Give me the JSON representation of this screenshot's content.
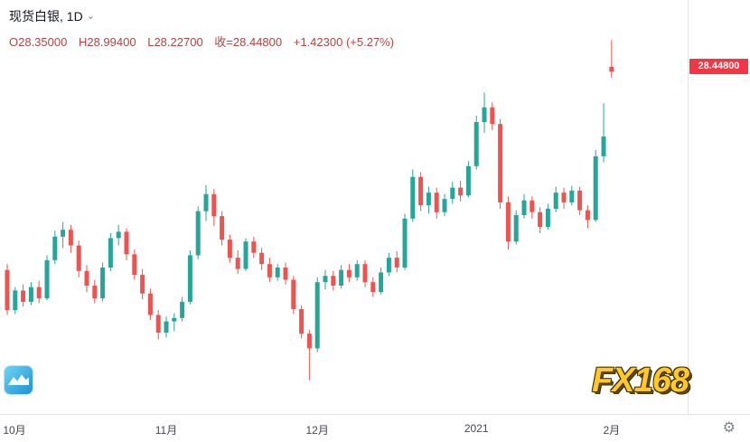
{
  "header": {
    "title": "现货白银, 1D",
    "dropdown_caret": "⌄",
    "ohlc": {
      "open": "O28.35000",
      "high": "H28.99400",
      "low": "L28.22700",
      "close": "收=28.44800",
      "change": "+1.42300 (+5.27%)"
    }
  },
  "price_axis": {
    "last_price_label": "28.44800"
  },
  "colors": {
    "up": "#26a69a",
    "down": "#ef5350",
    "label_bg": "#f23645",
    "ohlc_text": "#b24341",
    "axis_line": "#dcdfe5"
  },
  "watermark": {
    "brand": "FX168"
  },
  "bottom_bar": {
    "gear_icon": "⚙"
  },
  "chart_data": {
    "type": "candlestick",
    "title": "现货白银 1D",
    "symbol": "现货白银",
    "interval": "1D",
    "last_price": 28.448,
    "change": 1.423,
    "change_pct": 5.27,
    "y_range": [
      21.6,
      29.35
    ],
    "grid": false,
    "x_ticks": [
      {
        "index": 0,
        "label": "10月"
      },
      {
        "index": 20,
        "label": "11月"
      },
      {
        "index": 39,
        "label": "12月"
      },
      {
        "index": 59,
        "label": "2021"
      },
      {
        "index": 76,
        "label": "2月"
      }
    ],
    "candles": [
      [
        24.3,
        24.42,
        23.38,
        23.48
      ],
      [
        23.48,
        23.95,
        23.4,
        23.88
      ],
      [
        23.88,
        24.0,
        23.55,
        23.65
      ],
      [
        23.65,
        24.05,
        23.58,
        23.95
      ],
      [
        23.95,
        24.08,
        23.62,
        23.72
      ],
      [
        23.72,
        24.6,
        23.68,
        24.5
      ],
      [
        24.5,
        25.1,
        24.42,
        24.98
      ],
      [
        24.98,
        25.28,
        24.75,
        25.12
      ],
      [
        25.12,
        25.22,
        24.65,
        24.8
      ],
      [
        24.8,
        24.9,
        24.15,
        24.28
      ],
      [
        24.28,
        24.4,
        23.85,
        23.98
      ],
      [
        23.98,
        24.1,
        23.62,
        23.72
      ],
      [
        23.72,
        24.45,
        23.66,
        24.35
      ],
      [
        24.35,
        25.05,
        24.28,
        24.95
      ],
      [
        24.95,
        25.22,
        24.8,
        25.08
      ],
      [
        25.08,
        25.15,
        24.5,
        24.62
      ],
      [
        24.62,
        24.72,
        24.1,
        24.2
      ],
      [
        24.2,
        24.32,
        23.7,
        23.82
      ],
      [
        23.82,
        23.92,
        23.28,
        23.38
      ],
      [
        23.38,
        23.48,
        22.88,
        23.02
      ],
      [
        23.02,
        23.35,
        22.92,
        23.25
      ],
      [
        23.25,
        23.42,
        23.05,
        23.32
      ],
      [
        23.32,
        23.75,
        23.25,
        23.65
      ],
      [
        23.65,
        24.7,
        23.6,
        24.6
      ],
      [
        24.6,
        25.6,
        24.52,
        25.5
      ],
      [
        25.5,
        26.03,
        25.3,
        25.85
      ],
      [
        25.85,
        25.95,
        25.2,
        25.4
      ],
      [
        25.4,
        25.5,
        24.8,
        24.92
      ],
      [
        24.92,
        25.02,
        24.45,
        24.55
      ],
      [
        24.55,
        24.7,
        24.22,
        24.32
      ],
      [
        24.32,
        24.95,
        24.28,
        24.88
      ],
      [
        24.88,
        24.98,
        24.55,
        24.65
      ],
      [
        24.65,
        24.75,
        24.3,
        24.42
      ],
      [
        24.42,
        24.55,
        24.05,
        24.15
      ],
      [
        24.15,
        24.42,
        24.08,
        24.35
      ],
      [
        24.35,
        24.45,
        24.0,
        24.1
      ],
      [
        24.1,
        24.18,
        23.4,
        23.5
      ],
      [
        23.5,
        23.58,
        22.9,
        23.0
      ],
      [
        23.0,
        23.08,
        22.05,
        22.7
      ],
      [
        22.7,
        24.15,
        22.62,
        24.05
      ],
      [
        24.05,
        24.3,
        23.9,
        24.18
      ],
      [
        24.18,
        24.28,
        23.88,
        23.98
      ],
      [
        23.98,
        24.4,
        23.92,
        24.3
      ],
      [
        24.3,
        24.42,
        24.05,
        24.15
      ],
      [
        24.15,
        24.5,
        24.08,
        24.42
      ],
      [
        24.42,
        24.5,
        23.95,
        24.05
      ],
      [
        24.05,
        24.15,
        23.75,
        23.85
      ],
      [
        23.85,
        24.35,
        23.8,
        24.25
      ],
      [
        24.25,
        24.65,
        24.18,
        24.55
      ],
      [
        24.55,
        24.68,
        24.25,
        24.35
      ],
      [
        24.35,
        25.45,
        24.3,
        25.35
      ],
      [
        25.35,
        26.35,
        25.28,
        26.2
      ],
      [
        26.2,
        26.3,
        25.5,
        25.62
      ],
      [
        25.62,
        26.0,
        25.45,
        25.88
      ],
      [
        25.88,
        25.98,
        25.35,
        25.48
      ],
      [
        25.48,
        25.85,
        25.4,
        25.75
      ],
      [
        25.75,
        26.1,
        25.65,
        25.98
      ],
      [
        25.98,
        26.12,
        25.7,
        25.82
      ],
      [
        25.82,
        26.52,
        25.78,
        26.42
      ],
      [
        26.42,
        27.45,
        26.35,
        27.32
      ],
      [
        27.32,
        27.92,
        27.1,
        27.62
      ],
      [
        27.62,
        27.72,
        27.15,
        27.28
      ],
      [
        27.28,
        27.38,
        25.55,
        25.68
      ],
      [
        25.68,
        25.8,
        24.72,
        24.88
      ],
      [
        24.88,
        25.52,
        24.82,
        25.42
      ],
      [
        25.42,
        25.85,
        25.35,
        25.72
      ],
      [
        25.72,
        25.8,
        25.35,
        25.48
      ],
      [
        25.48,
        25.58,
        25.05,
        25.18
      ],
      [
        25.18,
        25.65,
        25.12,
        25.55
      ],
      [
        25.55,
        26.0,
        25.48,
        25.88
      ],
      [
        25.88,
        25.98,
        25.55,
        25.68
      ],
      [
        25.68,
        26.02,
        25.62,
        25.92
      ],
      [
        25.92,
        26.0,
        25.42,
        25.52
      ],
      [
        25.52,
        25.62,
        25.15,
        25.32
      ],
      [
        25.32,
        26.75,
        25.28,
        26.62
      ],
      [
        26.62,
        27.7,
        26.5,
        27.025
      ],
      [
        28.35,
        28.994,
        28.227,
        28.448,
        "down"
      ]
    ]
  }
}
